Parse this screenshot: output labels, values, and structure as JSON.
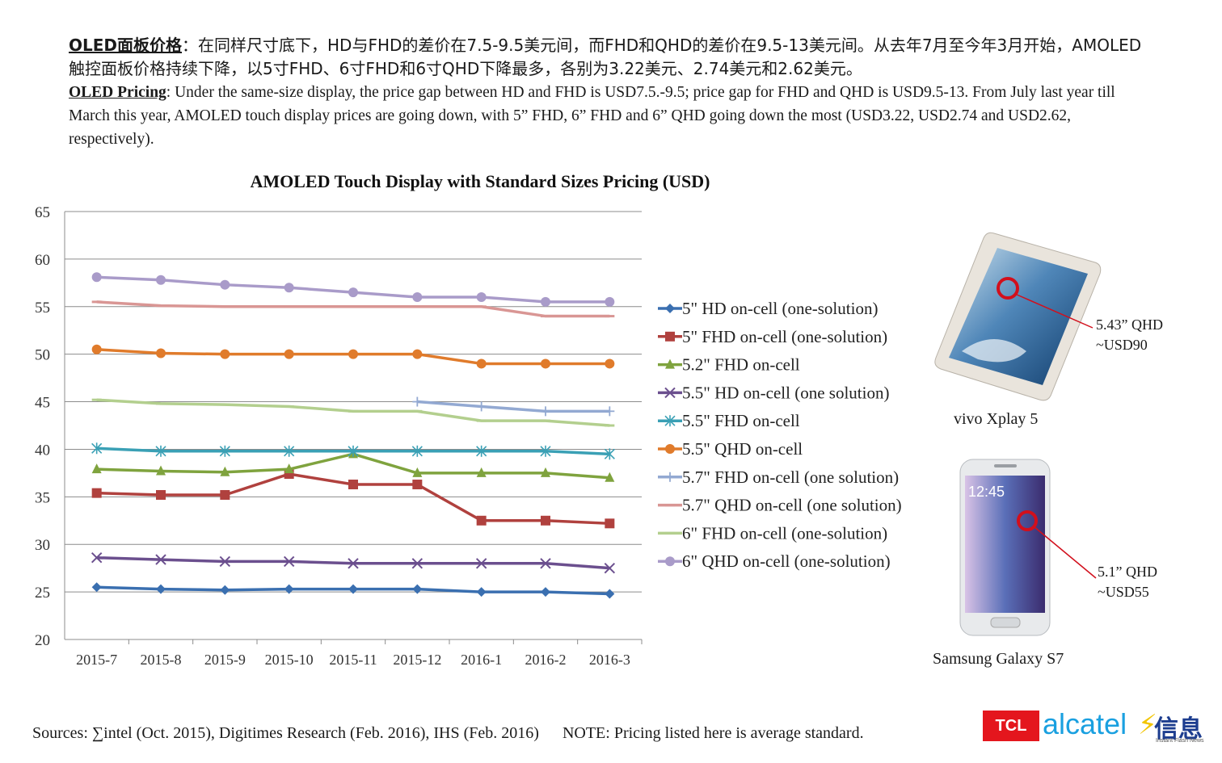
{
  "intro": {
    "cn_lead": "OLED面板价格",
    "cn_body": "：在同样尺寸底下，HD与FHD的差价在7.5-9.5美元间，而FHD和QHD的差价在9.5-13美元间。从去年7月至今年3月开始，AMOLED触控面板价格持续下降，以5寸FHD、6寸FHD和6寸QHD下降最多，各别为3.22美元、2.74美元和2.62美元。",
    "en_lead": "OLED Pricing",
    "en_body": ":  Under the same-size display, the price gap between HD and FHD is USD7.5.-9.5; price gap for FHD and QHD is USD9.5-13. From July last year till March this year, AMOLED touch display prices are going down, with 5” FHD, 6” FHD and 6” QHD going down the most (USD3.22, USD2.74 and USD2.62, respectively)."
  },
  "chart_data": {
    "type": "line",
    "title": "AMOLED Touch Display with Standard Sizes Pricing (USD)",
    "categories": [
      "2015-7",
      "2015-8",
      "2015-9",
      "2015-10",
      "2015-11",
      "2015-12",
      "2016-1",
      "2016-2",
      "2016-3"
    ],
    "ylim": [
      20,
      65
    ],
    "yticks": [
      20,
      25,
      30,
      35,
      40,
      45,
      50,
      55,
      60,
      65
    ],
    "grid": true,
    "legend": "right",
    "series": [
      {
        "name": "5\" HD on-cell (one-solution)",
        "color": "#3a6fb0",
        "marker": "diamond",
        "values": [
          25.5,
          25.3,
          25.2,
          25.3,
          25.3,
          25.3,
          25.0,
          25.0,
          24.8
        ]
      },
      {
        "name": "5\" FHD on-cell (one-solution)",
        "color": "#b0413e",
        "marker": "square",
        "values": [
          35.4,
          35.2,
          35.2,
          37.4,
          36.3,
          36.3,
          32.5,
          32.5,
          32.2
        ]
      },
      {
        "name": "5.2\" FHD on-cell",
        "color": "#7fa33e",
        "marker": "triangle",
        "values": [
          37.9,
          37.7,
          37.6,
          37.9,
          39.5,
          37.5,
          37.5,
          37.5,
          37.0
        ]
      },
      {
        "name": "5.5\" HD on-cell (one solution)",
        "color": "#6b4f8e",
        "marker": "x",
        "values": [
          28.6,
          28.4,
          28.2,
          28.2,
          28.0,
          28.0,
          28.0,
          28.0,
          27.5
        ]
      },
      {
        "name": "5.5\" FHD on-cell",
        "color": "#3aa0b5",
        "marker": "star",
        "values": [
          40.1,
          39.8,
          39.8,
          39.8,
          39.8,
          39.8,
          39.8,
          39.8,
          39.5
        ]
      },
      {
        "name": "5.5\" QHD on-cell",
        "color": "#e07b2b",
        "marker": "circle",
        "values": [
          50.5,
          50.1,
          50.0,
          50.0,
          50.0,
          50.0,
          49.0,
          49.0,
          49.0
        ]
      },
      {
        "name": "5.7\" FHD on-cell (one solution)",
        "color": "#93a9d2",
        "marker": "plus",
        "values": [
          null,
          null,
          null,
          null,
          null,
          45.0,
          44.5,
          44.0,
          44.0
        ]
      },
      {
        "name": "5.7\" QHD on-cell (one solution)",
        "color": "#d99694",
        "marker": "dash",
        "values": [
          55.5,
          55.1,
          55.0,
          55.0,
          55.0,
          55.0,
          55.0,
          54.0,
          54.0
        ]
      },
      {
        "name": "6\" FHD on-cell (one-solution)",
        "color": "#b3cf8e",
        "marker": "dash",
        "values": [
          45.2,
          44.8,
          44.7,
          44.5,
          44.0,
          44.0,
          43.0,
          43.0,
          42.5
        ]
      },
      {
        "name": "6\" QHD on-cell (one-solution)",
        "color": "#a99bc9",
        "marker": "circle",
        "values": [
          58.1,
          57.8,
          57.3,
          57.0,
          56.5,
          56.0,
          56.0,
          55.5,
          55.5
        ]
      }
    ]
  },
  "phones": {
    "vivo": {
      "name": "vivo Xplay 5",
      "callout_line1": "5.43” QHD",
      "callout_line2": "~USD90",
      "time": ""
    },
    "samsung": {
      "name": "Samsung Galaxy S7",
      "callout_line1": "5.1” QHD",
      "callout_line2": "~USD55",
      "time": "12:45"
    }
  },
  "footer": {
    "sources": "Sources: ∑intel (Oct. 2015), Digitimes Research (Feb. 2016), IHS (Feb. 2016)",
    "note": "NOTE: Pricing listed here is average standard."
  },
  "logos": {
    "tcl": "TCL",
    "alcatel": "alcatel",
    "xinxi": "信息",
    "tagline": "Instant Flash News"
  }
}
